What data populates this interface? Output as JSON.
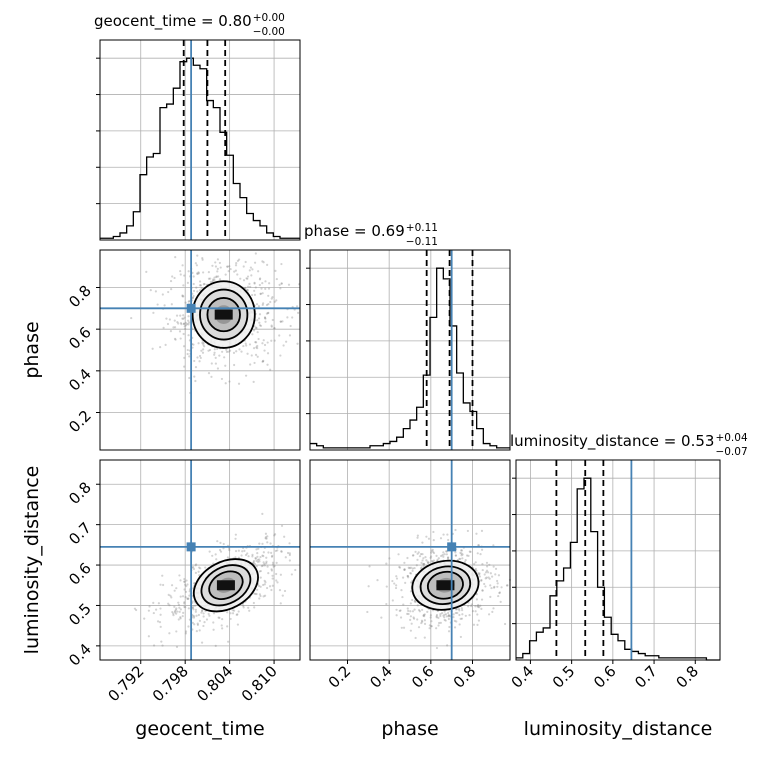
{
  "chart_data": {
    "type": "corner",
    "colors": {
      "truth": "#4682b4",
      "histogram": "#000000",
      "samples": "#808080",
      "grid": "#b0b0b0"
    },
    "grid": true,
    "parameters": [
      {
        "name": "geocent_time",
        "axis_label": "geocent_time",
        "title_main": "geocent_time = 0.80",
        "title_plus": "+0.00",
        "title_minus": "−0.00",
        "range": [
          0.7865,
          0.8135
        ],
        "ticks": [
          0.792,
          0.798,
          0.804,
          0.81
        ],
        "tick_labels": [
          "0.792",
          "0.798",
          "0.804",
          "0.810"
        ],
        "truth": 0.7988,
        "quantiles": [
          0.7978,
          0.801,
          0.8034
        ],
        "hist_bins": [
          0.7865,
          0.8135
        ],
        "hist_counts": [
          1,
          1,
          2,
          4,
          8,
          16,
          37,
          47,
          49,
          75,
          77,
          86,
          101,
          103,
          99,
          97,
          79,
          75,
          61,
          48,
          32,
          24,
          15,
          11,
          8,
          4,
          2,
          1,
          1,
          1
        ]
      },
      {
        "name": "phase",
        "axis_label": "phase",
        "title_main": "phase = 0.69",
        "title_plus": "+0.11",
        "title_minus": "−0.11",
        "range": [
          0.02,
          0.98
        ],
        "ticks": [
          0.2,
          0.4,
          0.6,
          0.8
        ],
        "tick_labels": [
          "0.2",
          "0.4",
          "0.6",
          "0.8"
        ],
        "truth": 0.7,
        "quantiles": [
          0.58,
          0.69,
          0.8
        ],
        "hist_bins": [
          0.02,
          0.98
        ],
        "hist_counts": [
          3,
          2,
          1,
          1,
          1,
          1,
          1,
          1,
          1,
          2,
          2,
          3,
          4,
          6,
          10,
          14,
          20,
          35,
          62,
          85,
          80,
          58,
          36,
          22,
          18,
          10,
          3,
          2,
          1,
          1
        ]
      },
      {
        "name": "luminosity_distance",
        "axis_label": "luminosity_distance",
        "title_main": "luminosity_distance = 0.53",
        "title_plus": "+0.04",
        "title_minus": "−0.07",
        "range": [
          0.365,
          0.86
        ],
        "ticks": [
          0.4,
          0.5,
          0.6,
          0.7,
          0.8
        ],
        "tick_labels": [
          "0.4",
          "0.5",
          "0.6",
          "0.7",
          "0.8"
        ],
        "truth": 0.645,
        "quantiles": [
          0.463,
          0.533,
          0.577
        ],
        "hist_bins": [
          0.365,
          0.86
        ],
        "hist_counts": [
          1,
          3,
          9,
          13,
          15,
          30,
          37,
          43,
          55,
          80,
          85,
          60,
          34,
          20,
          12,
          9,
          5,
          4,
          3,
          2,
          2,
          1,
          1,
          1,
          1,
          1,
          1,
          1,
          0,
          0
        ]
      }
    ],
    "pairs": [
      {
        "x": "geocent_time",
        "y": "phase",
        "peak": [
          0.8032,
          0.67
        ],
        "truth_marker": [
          0.7988,
          0.7
        ]
      },
      {
        "x": "geocent_time",
        "y": "luminosity_distance",
        "peak": [
          0.8035,
          0.55
        ],
        "truth_marker": [
          0.7988,
          0.645
        ]
      },
      {
        "x": "phase",
        "y": "luminosity_distance",
        "peak": [
          0.67,
          0.55
        ],
        "truth_marker": [
          0.7,
          0.645
        ]
      }
    ]
  }
}
